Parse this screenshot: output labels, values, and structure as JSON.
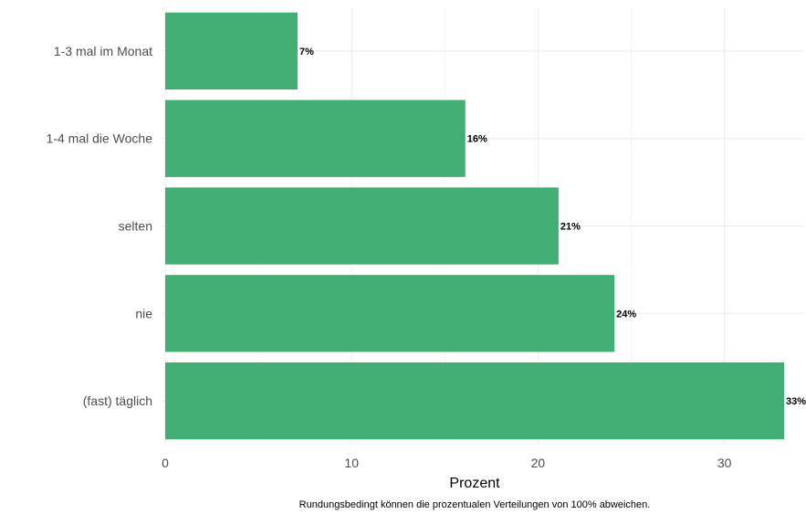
{
  "chart_data": {
    "type": "bar",
    "orientation": "horizontal",
    "categories": [
      "1-3 mal im Monat",
      "1-4 mal die Woche",
      "selten",
      "nie",
      "(fast) täglich"
    ],
    "values": [
      7.1,
      16.1,
      21.1,
      24.1,
      33.2
    ],
    "data_labels": [
      "7%",
      "16%",
      "21%",
      "24%",
      "33%"
    ],
    "xlabel": "Prozent",
    "xticks": [
      0,
      10,
      20,
      30
    ],
    "xlim": [
      0,
      33.2
    ],
    "bar_color": "#43AE74",
    "grid": true,
    "caption": "Rundungsbedingt können die prozentualen Verteilungen von 100% abweichen."
  }
}
